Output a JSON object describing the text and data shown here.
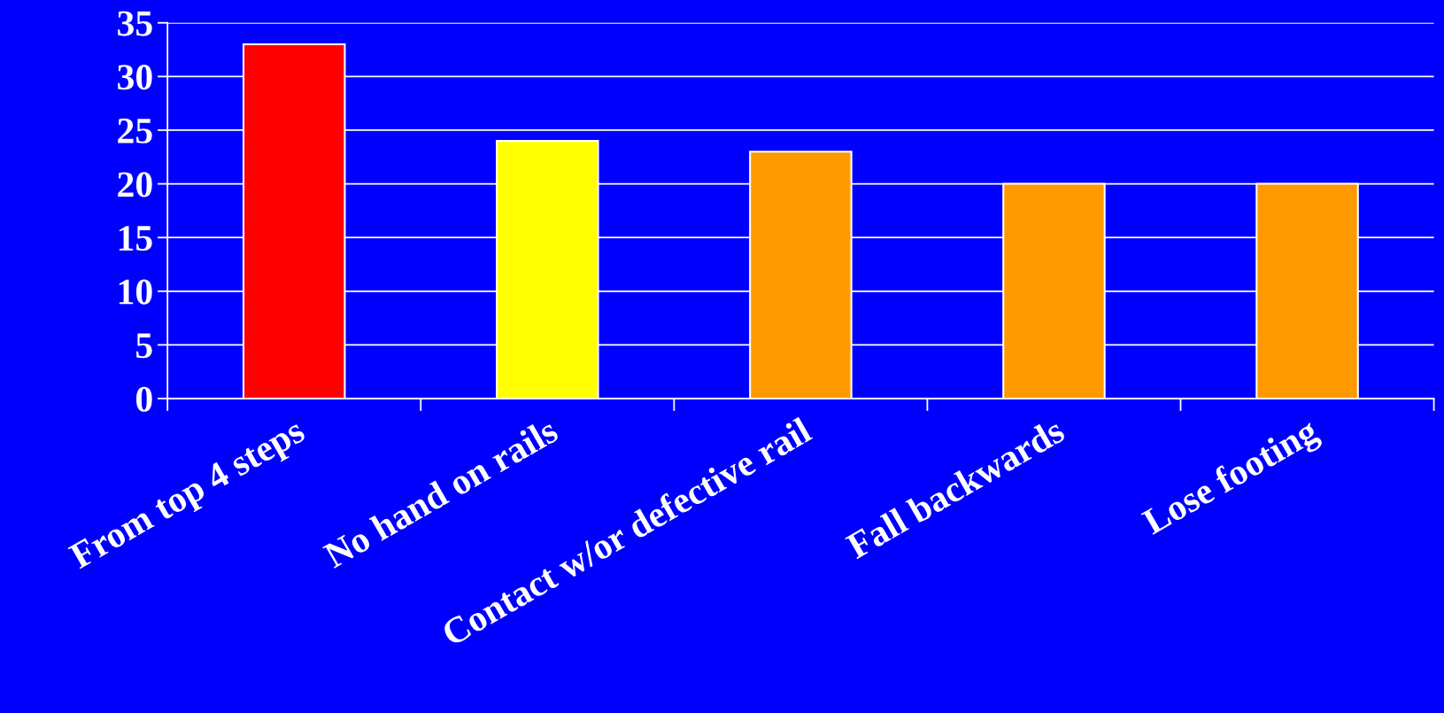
{
  "chart_data": {
    "type": "bar",
    "categories": [
      "From top 4 steps",
      "No hand on rails",
      "Contact w/or defective rail",
      "Fall backwards",
      "Lose footing"
    ],
    "values": [
      33,
      24,
      23,
      20,
      20
    ],
    "colors": [
      "#ff0000",
      "#ffff00",
      "#ff9900",
      "#ff9900",
      "#ff9900"
    ],
    "ylim": [
      0,
      35
    ],
    "yticks": [
      0,
      5,
      10,
      15,
      20,
      25,
      30,
      35
    ],
    "grid": "y"
  }
}
